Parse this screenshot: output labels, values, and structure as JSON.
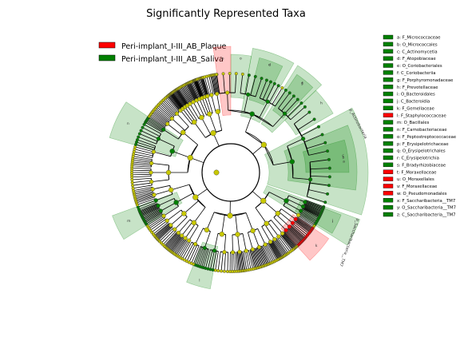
{
  "chart_data": {
    "type": "cladogram",
    "title": "Significantly Represented Taxa",
    "groups": [
      {
        "name": "Peri-implant_I-III_AB_Plaque",
        "color": "#ff0000"
      },
      {
        "name": "Peri-implant_I-III_AB_Saliva",
        "color": "#008000"
      }
    ],
    "node_color": "#c8c800",
    "clade_key": [
      {
        "letter": "a",
        "text": "a: F_Micrococcaceae",
        "group": 1
      },
      {
        "letter": "b",
        "text": "b: O_Micrococcales",
        "group": 1
      },
      {
        "letter": "c",
        "text": "c: C_Actinomycetia",
        "group": 1
      },
      {
        "letter": "d",
        "text": "d: F_Atopobiaceae",
        "group": 1
      },
      {
        "letter": "e",
        "text": "e: O_Coriobacteriales",
        "group": 1
      },
      {
        "letter": "f",
        "text": "f: C_Coriobacteriia",
        "group": 1
      },
      {
        "letter": "g",
        "text": "g: F_Porphyromonadaceae",
        "group": 1
      },
      {
        "letter": "h",
        "text": "h: F_Prevotellaceae",
        "group": 1
      },
      {
        "letter": "i",
        "text": "i: O_Bacteroidales",
        "group": 1
      },
      {
        "letter": "j",
        "text": "j: C_Bacteroidia",
        "group": 1
      },
      {
        "letter": "k",
        "text": "k: F_Gemellaceae",
        "group": 1
      },
      {
        "letter": "l",
        "text": "l: F_Staphylococcaceae",
        "group": 0
      },
      {
        "letter": "m",
        "text": "m: O_Bacillales",
        "group": 1
      },
      {
        "letter": "n",
        "text": "n: F_Carnobacteriaceae",
        "group": 1
      },
      {
        "letter": "o",
        "text": "o: F_Peptostreptococcaceae",
        "group": 1
      },
      {
        "letter": "p",
        "text": "p: F_Erysipelotrichaceae",
        "group": 1
      },
      {
        "letter": "q",
        "text": "q: O_Erysipelotrichales",
        "group": 1
      },
      {
        "letter": "r",
        "text": "r: C_Erysipelotrichia",
        "group": 1
      },
      {
        "letter": "s",
        "text": "s: F_Bradyrhizobiaceae",
        "group": 1
      },
      {
        "letter": "t",
        "text": "t: F_Moraxellaceae",
        "group": 0
      },
      {
        "letter": "u",
        "text": "u: O_Moraxellales",
        "group": 0
      },
      {
        "letter": "v",
        "text": "v: F_Moraxellaceae",
        "group": 0
      },
      {
        "letter": "w",
        "text": "w: O_Pseudomonadales",
        "group": 0
      },
      {
        "letter": "x",
        "text": "x: F_Saccharibacteria__TM7",
        "group": 1
      },
      {
        "letter": "y",
        "text": "y: O_Saccharibacteria__TM7",
        "group": 1
      },
      {
        "letter": "z",
        "text": "z: C_Saccharibacteria__TM7",
        "group": 1
      }
    ],
    "outer_labels": [
      {
        "text": "p_Actinobacteria",
        "group": 1
      },
      {
        "text": "p_Saccharibacteria__TM7",
        "group": 1
      }
    ],
    "clade_sectors": [
      {
        "angles": [
          -28,
          18
        ],
        "level": 2,
        "group": 1
      },
      {
        "angles": [
          -22,
          8
        ],
        "level": 3,
        "group": 1
      },
      {
        "angles": [
          -16,
          0
        ],
        "level": 4,
        "group": 1
      },
      {
        "angles": [
          -80,
          -60
        ],
        "level": 3,
        "group": 1
      },
      {
        "angles": [
          -76,
          -64
        ],
        "level": 4,
        "group": 1
      },
      {
        "angles": [
          -58,
          -44
        ],
        "level": 3,
        "group": 1
      },
      {
        "angles": [
          -56,
          -46
        ],
        "level": 4,
        "group": 1
      },
      {
        "angles": [
          -44,
          -30
        ],
        "level": 4,
        "group": 1
      },
      {
        "angles": [
          20,
          32
        ],
        "level": 2,
        "group": 1
      },
      {
        "angles": [
          21,
          31
        ],
        "level": 4,
        "group": 1
      },
      {
        "angles": [
          34,
          48
        ],
        "level": 4,
        "group": 0
      },
      {
        "angles": [
          100,
          112
        ],
        "level": 4,
        "group": 1
      },
      {
        "angles": [
          148,
          160
        ],
        "level": 3,
        "group": 1
      },
      {
        "angles": [
          196,
          214
        ],
        "level": 3,
        "group": 1
      },
      {
        "angles": [
          270,
          280
        ],
        "level": 4,
        "group": 1
      },
      {
        "angles": [
          262,
          270
        ],
        "level": 3,
        "group": 0
      }
    ]
  }
}
